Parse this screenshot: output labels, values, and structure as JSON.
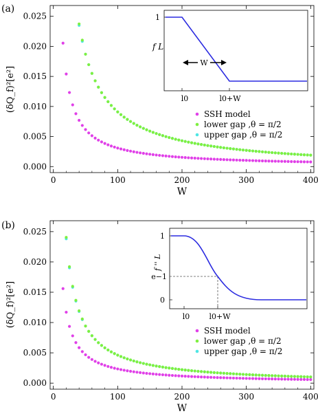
{
  "chart_data": [
    {
      "type": "scatter",
      "panel_label": "(a)",
      "xlabel": "W",
      "ylabel": "(δQ_f)²[e²]",
      "xlim": [
        -5,
        405
      ],
      "ylim": [
        -0.001,
        0.0268
      ],
      "xticks": [
        "0",
        "100",
        "200",
        "300",
        "400"
      ],
      "yticks": [
        "0.000",
        "0.005",
        "0.010",
        "0.015",
        "0.020",
        "0.025"
      ],
      "ytick_values": [
        0,
        0.005,
        0.01,
        0.015,
        0.02,
        0.025
      ],
      "legend_position": "center-right",
      "series": [
        {
          "name": "SSH  model",
          "color": "#e040e8",
          "model": "ssh_a"
        },
        {
          "name": "lower gap ,θ = π/2",
          "color": "#7ef040",
          "model": "gap_a"
        },
        {
          "name": "upper gap ,θ = π/2",
          "color": "#4ee6e4",
          "model": "gap_a"
        }
      ],
      "inset": {
        "type": "line",
        "profile": "linear",
        "ylabel": "f L",
        "ytick": "1",
        "xticks": [
          "l0",
          "l0+W"
        ],
        "arrow_label": "W",
        "color": "#2a2ae0"
      }
    },
    {
      "type": "scatter",
      "panel_label": "(b)",
      "xlabel": "W",
      "ylabel": "(δQ_f)²[e²]",
      "xlim": [
        -5,
        405
      ],
      "ylim": [
        -0.001,
        0.0268
      ],
      "xticks": [
        "0",
        "100",
        "200",
        "300",
        "400"
      ],
      "yticks": [
        "0.000",
        "0.005",
        "0.010",
        "0.015",
        "0.020",
        "0.025"
      ],
      "ytick_values": [
        0,
        0.005,
        0.01,
        0.015,
        0.02,
        0.025
      ],
      "legend_position": "center-right",
      "series": [
        {
          "name": "SSH  model",
          "color": "#e040e8",
          "model": "ssh_b"
        },
        {
          "name": "lower gap ,θ = π/2",
          "color": "#7ef040",
          "model": "gap_b"
        },
        {
          "name": "upper gap ,θ = π/2",
          "color": "#4ee6e4",
          "model": "gap_b"
        }
      ],
      "inset": {
        "type": "line",
        "profile": "smooth",
        "ylabel": "f '' L",
        "yticks": [
          "1",
          "e−1",
          "0"
        ],
        "xticks": [
          "l0",
          "l0+W"
        ],
        "color": "#2a2ae0"
      }
    }
  ]
}
